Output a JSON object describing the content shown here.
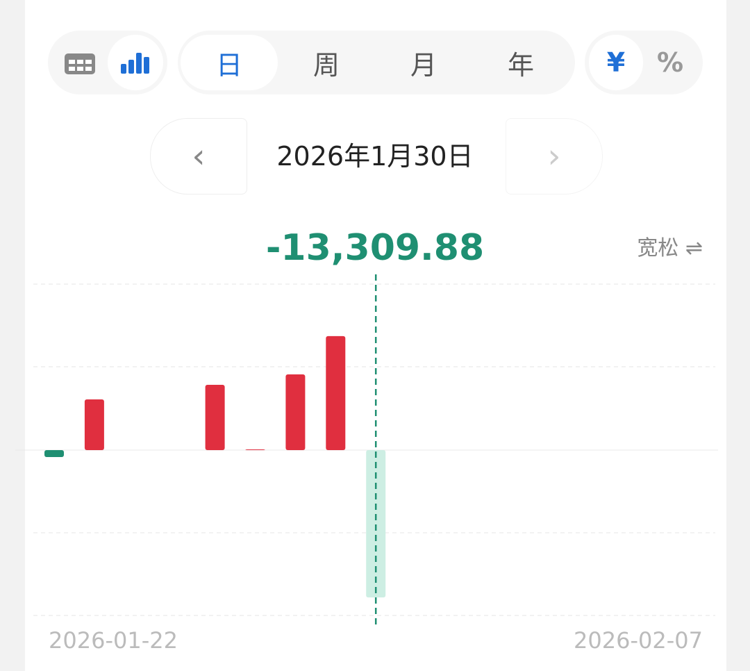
{
  "toolbar": {
    "view_icons": [
      "calendar-icon",
      "bar-chart-icon"
    ],
    "active_view": "bar-chart",
    "periods": [
      "日",
      "周",
      "月",
      "年"
    ],
    "active_period": "日",
    "units": [
      "¥",
      "%"
    ],
    "active_unit": "¥"
  },
  "date_nav": {
    "prev": "‹",
    "date": "2026年1月30日",
    "next": "›"
  },
  "summary": {
    "value": "-13,309.88",
    "mode_label": "宽松",
    "mode_icon": "swap-arrows-icon",
    "swap_glyph": "⇌"
  },
  "colors": {
    "positive": "#e02f3f",
    "negative": "#1f8f72",
    "selected_negative": "#cdeee3",
    "accent": "#1f6fd6"
  },
  "chart_data": {
    "type": "bar",
    "x_start_label": "2026-01-22",
    "x_end_label": "2026-02-07",
    "selected": "2026-01-30",
    "points": [
      {
        "date": "2026-01-22",
        "value": -630
      },
      {
        "date": "2026-01-23",
        "value": 4580
      },
      {
        "date": "2026-01-26",
        "value": 5900
      },
      {
        "date": "2026-01-27",
        "value": 60
      },
      {
        "date": "2026-01-28",
        "value": 6840
      },
      {
        "date": "2026-01-29",
        "value": 10300
      },
      {
        "date": "2026-01-30",
        "value": -13309.88
      }
    ],
    "ylim": [
      -15000,
      15000
    ],
    "grid": true
  }
}
